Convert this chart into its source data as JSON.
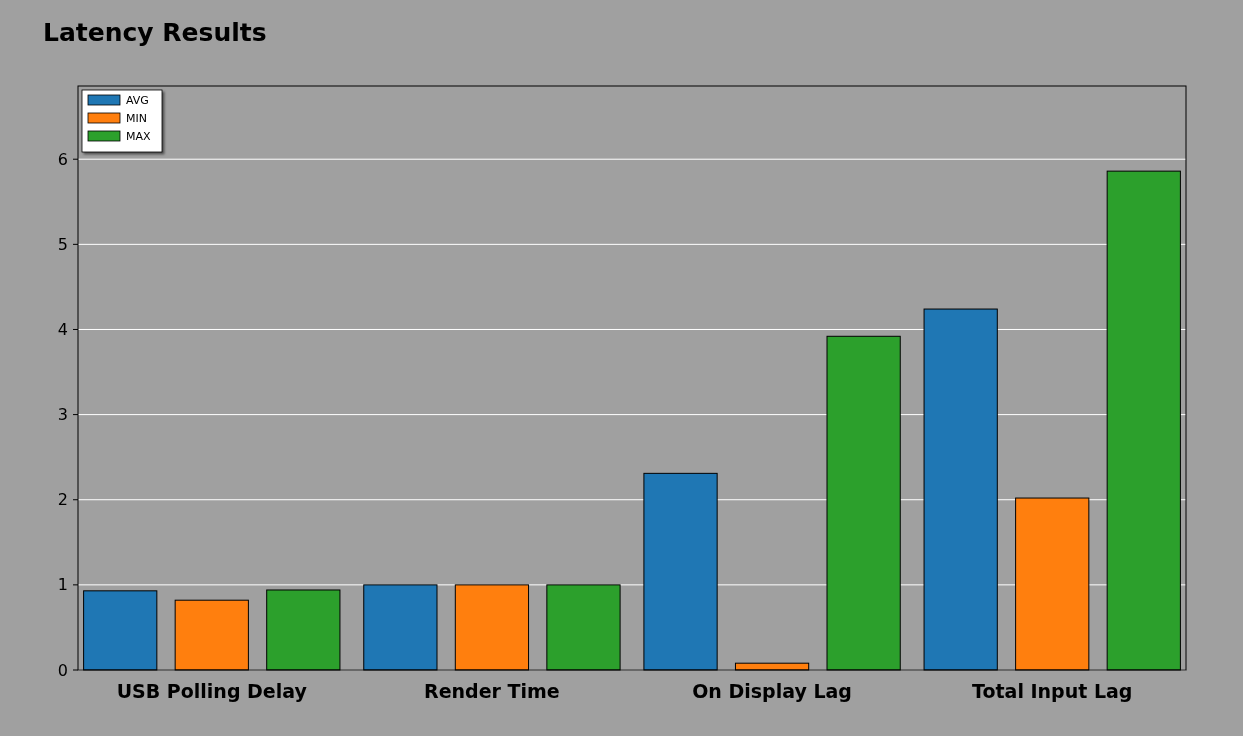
{
  "chart_data": {
    "type": "bar",
    "title": "Latency Results",
    "categories": [
      "USB Polling Delay",
      "Render Time",
      "On Display Lag",
      "Total Input Lag"
    ],
    "series": [
      {
        "name": "AVG",
        "color": "#1f77b4",
        "values": [
          0.93,
          1.0,
          2.31,
          4.24
        ]
      },
      {
        "name": "MIN",
        "color": "#ff7f0e",
        "values": [
          0.82,
          1.0,
          0.08,
          2.02
        ]
      },
      {
        "name": "MAX",
        "color": "#2ca02c",
        "values": [
          0.94,
          1.0,
          3.92,
          5.86
        ]
      }
    ],
    "ylim": [
      0,
      6.86
    ],
    "yticks": [
      0,
      1,
      2,
      3,
      4,
      5,
      6
    ],
    "grid": "y",
    "legend": "top left"
  }
}
